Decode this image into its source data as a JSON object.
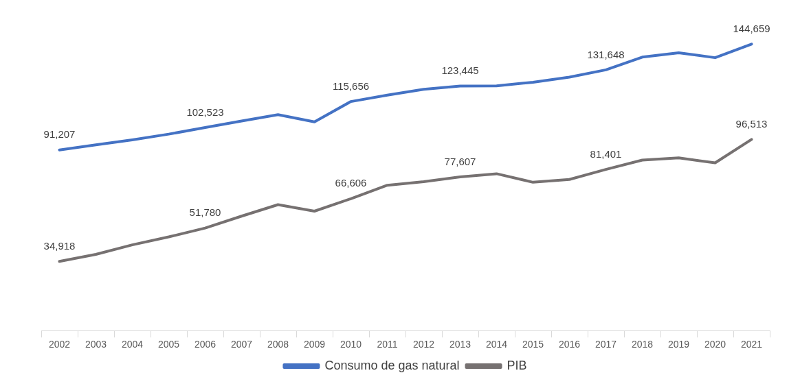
{
  "chart_data": {
    "type": "line",
    "categories": [
      "2002",
      "2003",
      "2004",
      "2005",
      "2006",
      "2007",
      "2008",
      "2009",
      "2010",
      "2011",
      "2012",
      "2013",
      "2014",
      "2015",
      "2016",
      "2017",
      "2018",
      "2019",
      "2020",
      "2021"
    ],
    "series": [
      {
        "name": "Consumo de gas natural",
        "color": "#4472c4",
        "values": [
          91207,
          93800,
          96300,
          99200,
          102523,
          105800,
          109000,
          105400,
          115656,
          118900,
          121800,
          123445,
          123600,
          125400,
          128000,
          131648,
          138100,
          140300,
          137800,
          144659
        ],
        "value_labels": [
          "91,207",
          null,
          null,
          null,
          "102,523",
          null,
          null,
          null,
          "115,656",
          null,
          null,
          "123,445",
          null,
          null,
          null,
          "131,648",
          null,
          null,
          null,
          "144,659"
        ]
      },
      {
        "name": "PIB",
        "color": "#767171",
        "values": [
          34918,
          38500,
          43300,
          47300,
          51780,
          57800,
          63600,
          60300,
          66606,
          73400,
          75200,
          77607,
          79200,
          74900,
          76300,
          81401,
          86100,
          87200,
          84700,
          96513
        ],
        "value_labels": [
          "34,918",
          null,
          null,
          null,
          "51,780",
          null,
          null,
          null,
          "66,606",
          null,
          null,
          "77,607",
          null,
          null,
          null,
          "81,401",
          null,
          null,
          null,
          "96,513"
        ]
      }
    ],
    "grid": false,
    "legend": "bottom",
    "marker": "none",
    "line_style": "solid"
  }
}
